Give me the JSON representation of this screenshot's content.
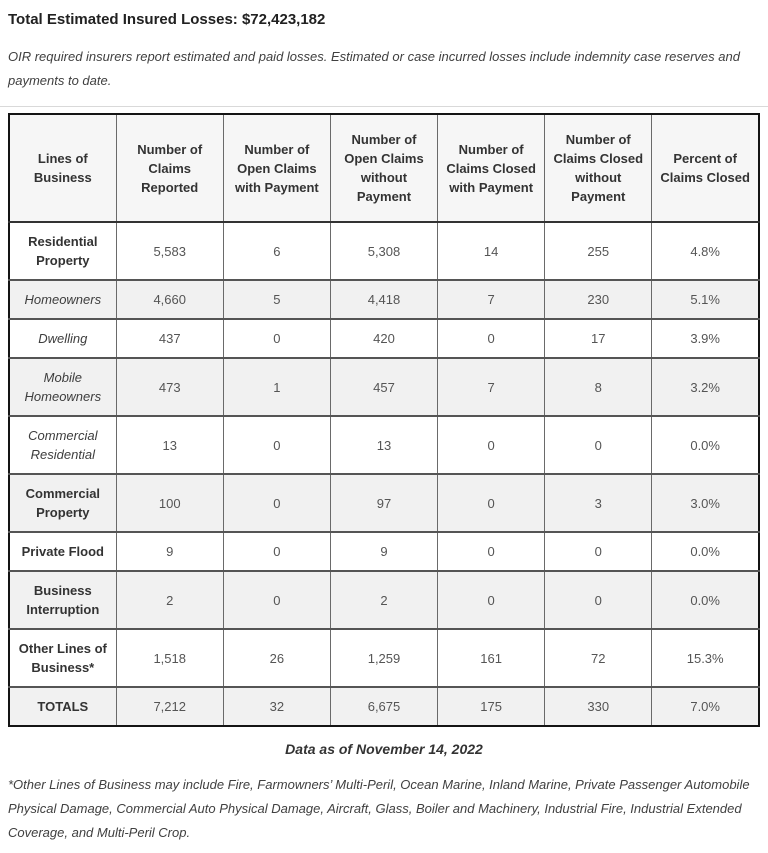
{
  "page": {
    "title": "Total Estimated Insured Losses: $72,423,182",
    "intro": "OIR required insurers report estimated and paid losses. Estimated or case incurred losses include indemnity case reserves and payments to date.",
    "data_as_of": "Data as of November 14, 2022",
    "footnote": "*Other Lines of Business may include Fire, Farmowners’ Multi-Peril, Ocean Marine, Inland Marine, Private Passenger Automobile Physical Damage, Commercial Auto Physical Damage, Aircraft, Glass, Boiler and Machinery, Industrial Fire, Industrial Extended Coverage, and Multi-Peril Crop."
  },
  "colors": {
    "stripe_row_bg": "#f1f1f1",
    "header_row_bg": "#f6f6f6",
    "table_border": "#141414"
  },
  "chart_data": {
    "type": "table",
    "columns": [
      "Lines of Business",
      "Number of Claims Reported",
      "Number of Open Claims with Payment",
      "Number of Open Claims without Payment",
      "Number of Claims Closed with Payment",
      "Number of Claims Closed without Payment",
      "Percent of Claims Closed"
    ],
    "rows": [
      {
        "label": "Residential Property",
        "style": "main",
        "values": [
          "5,583",
          "6",
          "5,308",
          "14",
          "255",
          "4.8%"
        ]
      },
      {
        "label": "Homeowners",
        "style": "sub",
        "values": [
          "4,660",
          "5",
          "4,418",
          "7",
          "230",
          "5.1%"
        ]
      },
      {
        "label": "Dwelling",
        "style": "sub",
        "values": [
          "437",
          "0",
          "420",
          "0",
          "17",
          "3.9%"
        ]
      },
      {
        "label": "Mobile Homeowners",
        "style": "sub",
        "values": [
          "473",
          "1",
          "457",
          "7",
          "8",
          "3.2%"
        ]
      },
      {
        "label": "Commercial Residential",
        "style": "sub",
        "values": [
          "13",
          "0",
          "13",
          "0",
          "0",
          "0.0%"
        ]
      },
      {
        "label": "Commercial Property",
        "style": "main",
        "values": [
          "100",
          "0",
          "97",
          "0",
          "3",
          "3.0%"
        ]
      },
      {
        "label": "Private Flood",
        "style": "main",
        "values": [
          "9",
          "0",
          "9",
          "0",
          "0",
          "0.0%"
        ]
      },
      {
        "label": "Business Interruption",
        "style": "main",
        "values": [
          "2",
          "0",
          "2",
          "0",
          "0",
          "0.0%"
        ]
      },
      {
        "label": "Other Lines of Business*",
        "style": "main",
        "values": [
          "1,518",
          "26",
          "1,259",
          "161",
          "72",
          "15.3%"
        ]
      },
      {
        "label": "TOTALS",
        "style": "total",
        "values": [
          "7,212",
          "32",
          "6,675",
          "175",
          "330",
          "7.0%"
        ]
      }
    ]
  }
}
